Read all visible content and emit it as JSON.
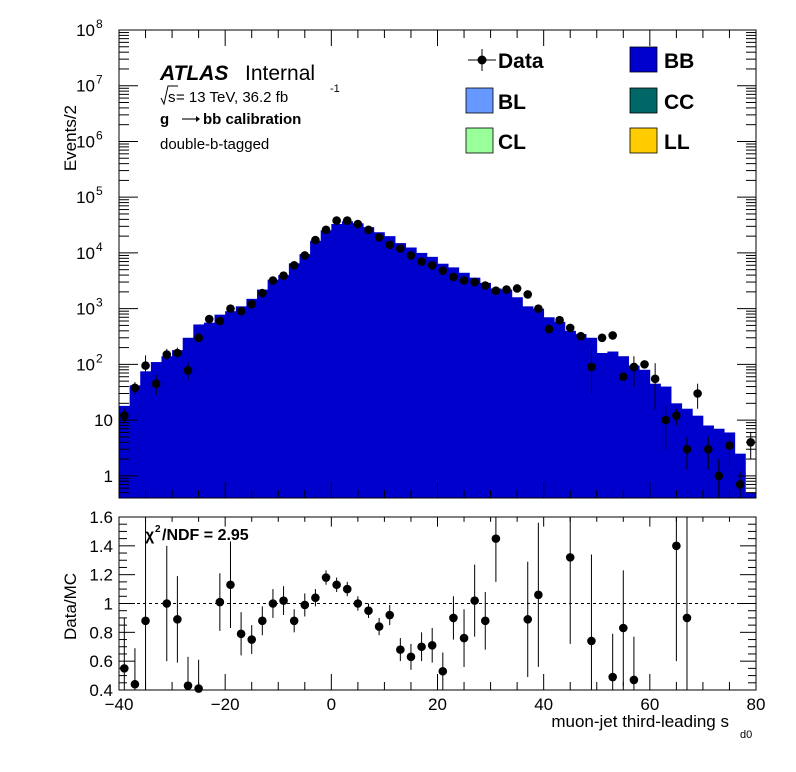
{
  "chart_data": [
    {
      "type": "histogram",
      "panel": "main",
      "ylabel": "Events/2",
      "log_y": true,
      "ylim": [
        0.4,
        100000000
      ],
      "xlim": [
        -40,
        80
      ],
      "bin_width": 2,
      "y_ticks": [
        {
          "value": 1,
          "label": "1"
        },
        {
          "value": 10,
          "label": "10"
        },
        {
          "value": 100,
          "label": "10^2"
        },
        {
          "value": 1000,
          "label": "10^3"
        },
        {
          "value": 10000,
          "label": "10^4"
        },
        {
          "value": 100000,
          "label": "10^5"
        },
        {
          "value": 1000000,
          "label": "10^6"
        },
        {
          "value": 10000000,
          "label": "10^7"
        },
        {
          "value": 100000000,
          "label": "10^8"
        }
      ],
      "annotations": {
        "atlas": "ATLAS",
        "atlas_status": "Internal",
        "energy_prefix": "s",
        "energy_text": " = 13 TeV, 36.2 fb",
        "energy_exp": "-1",
        "process_g": "g",
        "process_rest": "bb calibration",
        "selection": "double-b-tagged"
      },
      "legend": {
        "placement": "top-right",
        "entries": [
          {
            "label": "Data",
            "style": "marker",
            "color": "#000000"
          },
          {
            "label": "BB",
            "style": "fill",
            "color": "#0000cc"
          },
          {
            "label": "BL",
            "style": "fill",
            "color": "#6699ff"
          },
          {
            "label": "CC",
            "style": "fill",
            "color": "#006666"
          },
          {
            "label": "CL",
            "style": "fill",
            "color": "#99ff99"
          },
          {
            "label": "LL",
            "style": "fill",
            "color": "#ffcc00"
          }
        ]
      },
      "mc_total": [
        18,
        42,
        75,
        110,
        140,
        180,
        300,
        520,
        560,
        780,
        900,
        1100,
        1500,
        2200,
        3300,
        4000,
        6500,
        9500,
        16500,
        25500,
        33000,
        37000,
        34000,
        29000,
        23500,
        20000,
        15000,
        12500,
        10000,
        8500,
        6400,
        5500,
        4400,
        3600,
        2900,
        2300,
        2200,
        1600,
        1100,
        1000,
        700,
        580,
        400,
        350,
        300,
        160,
        170,
        140,
        95,
        80,
        45,
        40,
        20,
        16,
        12,
        8,
        7,
        6,
        2.5,
        0.5
      ],
      "data_y": [
        12,
        38,
        95,
        45,
        150,
        160,
        78,
        300,
        650,
        600,
        1000,
        900,
        1200,
        1900,
        3200,
        3900,
        6000,
        9000,
        17000,
        26000,
        38000,
        38000,
        33000,
        26000,
        19000,
        14000,
        12000,
        9000,
        7000,
        6000,
        4800,
        3700,
        3200,
        3000,
        2600,
        2100,
        2200,
        2300,
        1800,
        1000,
        430,
        620,
        450,
        320,
        90,
        300,
        330,
        60,
        90,
        100,
        55,
        10,
        12,
        3,
        30,
        3,
        1,
        3.5,
        0.7,
        4
      ],
      "data_err_up": [
        4,
        10,
        50,
        20,
        40,
        40,
        30,
        60,
        120,
        100,
        120,
        100,
        100,
        100,
        120,
        120,
        150,
        150,
        150,
        200,
        250,
        250,
        250,
        200,
        150,
        150,
        120,
        100,
        100,
        90,
        80,
        70,
        70,
        60,
        60,
        50,
        50,
        50,
        40,
        35,
        20,
        25,
        22,
        18,
        100,
        18,
        18,
        8,
        50,
        10,
        50,
        8,
        4,
        2,
        15,
        2,
        1,
        2,
        0.5,
        2
      ],
      "data_err_dn": [
        3,
        9,
        30,
        17,
        30,
        30,
        25,
        50,
        100,
        80,
        100,
        80,
        100,
        100,
        120,
        120,
        150,
        150,
        150,
        200,
        250,
        250,
        250,
        200,
        150,
        150,
        120,
        100,
        100,
        90,
        80,
        70,
        70,
        60,
        60,
        50,
        50,
        50,
        40,
        35,
        20,
        25,
        22,
        18,
        60,
        18,
        18,
        8,
        50,
        10,
        40,
        7,
        4,
        1.7,
        14,
        1.7,
        0.8,
        2,
        0.5,
        2
      ]
    },
    {
      "type": "scatter",
      "panel": "ratio",
      "ylabel": "Data/MC",
      "xlabel": "muon-jet third-leading s",
      "xlabel_sub": "d0",
      "xlim": [
        -40,
        80
      ],
      "ylim": [
        0.4,
        1.6
      ],
      "x_ticks": [
        -40,
        -20,
        0,
        20,
        40,
        60,
        80
      ],
      "x_tick_labels": [
        "−40",
        "−20",
        "0",
        "20",
        "40",
        "60",
        "80"
      ],
      "y_ticks": [
        0.4,
        0.6,
        0.8,
        1,
        1.2,
        1.4,
        1.6
      ],
      "y_tick_labels": [
        "0.4",
        "0.6",
        "0.8",
        "1",
        "1.2",
        "1.4",
        "1.6"
      ],
      "reference_line": 1,
      "chi2_label_chi": "χ",
      "chi2_label_sup": "2",
      "chi2_label_rest": "/NDF = 2.95",
      "points": [
        {
          "x": -39,
          "y": 0.55,
          "err": 0.35
        },
        {
          "x": -37,
          "y": 0.44,
          "err": 0.25
        },
        {
          "x": -35,
          "y": 0.88,
          "err": 0.7
        },
        {
          "x": -31,
          "y": 1.0,
          "err": 0.4
        },
        {
          "x": -29,
          "y": 0.89,
          "err": 0.3
        },
        {
          "x": -27,
          "y": 0.43,
          "err": 0.2
        },
        {
          "x": -25,
          "y": 0.41,
          "err": 0.2
        },
        {
          "x": -21,
          "y": 1.01,
          "err": 0.2
        },
        {
          "x": -19,
          "y": 1.13,
          "err": 0.3
        },
        {
          "x": -17,
          "y": 0.79,
          "err": 0.15
        },
        {
          "x": -15,
          "y": 0.75,
          "err": 0.1
        },
        {
          "x": -13,
          "y": 0.88,
          "err": 0.1
        },
        {
          "x": -11,
          "y": 1.0,
          "err": 0.1
        },
        {
          "x": -9,
          "y": 1.02,
          "err": 0.1
        },
        {
          "x": -7,
          "y": 0.88,
          "err": 0.08
        },
        {
          "x": -5,
          "y": 0.99,
          "err": 0.08
        },
        {
          "x": -3,
          "y": 1.04,
          "err": 0.06
        },
        {
          "x": -1,
          "y": 1.18,
          "err": 0.05
        },
        {
          "x": 1,
          "y": 1.13,
          "err": 0.05
        },
        {
          "x": 3,
          "y": 1.1,
          "err": 0.05
        },
        {
          "x": 5,
          "y": 1.0,
          "err": 0.05
        },
        {
          "x": 7,
          "y": 0.95,
          "err": 0.05
        },
        {
          "x": 9,
          "y": 0.84,
          "err": 0.06
        },
        {
          "x": 11,
          "y": 0.92,
          "err": 0.07
        },
        {
          "x": 13,
          "y": 0.68,
          "err": 0.08
        },
        {
          "x": 15,
          "y": 0.63,
          "err": 0.09
        },
        {
          "x": 17,
          "y": 0.7,
          "err": 0.1
        },
        {
          "x": 19,
          "y": 0.71,
          "err": 0.12
        },
        {
          "x": 21,
          "y": 0.53,
          "err": 0.13
        },
        {
          "x": 23,
          "y": 0.9,
          "err": 0.15
        },
        {
          "x": 25,
          "y": 0.76,
          "err": 0.2
        },
        {
          "x": 27,
          "y": 1.02,
          "err": 0.25
        },
        {
          "x": 29,
          "y": 0.88,
          "err": 0.2
        },
        {
          "x": 31,
          "y": 1.45,
          "err": 0.3
        },
        {
          "x": 37,
          "y": 0.89,
          "err": 0.4
        },
        {
          "x": 39,
          "y": 1.06,
          "err": 0.5
        },
        {
          "x": 45,
          "y": 1.32,
          "err": 0.6
        },
        {
          "x": 49,
          "y": 0.74,
          "err": 0.6
        },
        {
          "x": 53,
          "y": 0.49,
          "err": 0.3
        },
        {
          "x": 55,
          "y": 0.83,
          "err": 0.4
        },
        {
          "x": 57,
          "y": 0.47,
          "err": 0.3
        },
        {
          "x": 65,
          "y": 1.4,
          "err": 0.8
        },
        {
          "x": 67,
          "y": 0.9,
          "err": 0.8
        }
      ]
    }
  ]
}
